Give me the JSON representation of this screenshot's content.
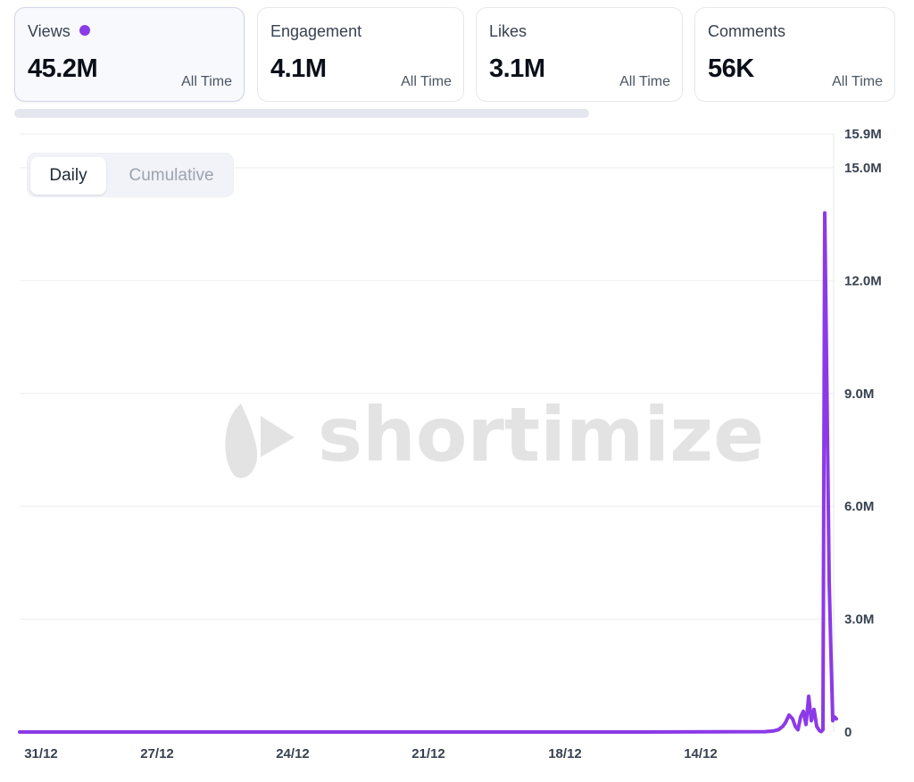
{
  "metrics": [
    {
      "label": "Views",
      "value": "45.2M",
      "period": "All Time",
      "active": true
    },
    {
      "label": "Engagement",
      "value": "4.1M",
      "period": "All Time"
    },
    {
      "label": "Likes",
      "value": "3.1M",
      "period": "All Time"
    },
    {
      "label": "Comments",
      "value": "56K",
      "period": "All Time"
    }
  ],
  "toggle": {
    "daily": "Daily",
    "cumulative": "Cumulative",
    "selected": "daily"
  },
  "watermark": "shortimize",
  "colors": {
    "accent": "#8b3ce6",
    "line": "#8c3ae7"
  },
  "chart_data": {
    "type": "line",
    "x_tick_labels": [
      "31/12",
      "27/12",
      "24/12",
      "21/12",
      "18/12",
      "14/12"
    ],
    "y_tick_labels": [
      "0",
      "3.0M",
      "6.0M",
      "9.0M",
      "12.0M",
      "15.0M",
      "15.9M"
    ],
    "ylim": [
      0,
      15900000
    ],
    "grid": true,
    "series": [
      {
        "values": [
          [
            0,
            0
          ],
          [
            700,
            0
          ],
          [
            835,
            10000
          ],
          [
            845,
            30000
          ],
          [
            850,
            60000
          ],
          [
            855,
            150000
          ],
          [
            858,
            250000
          ],
          [
            862,
            450000
          ],
          [
            866,
            350000
          ],
          [
            869,
            150000
          ],
          [
            872,
            60000
          ],
          [
            875,
            400000
          ],
          [
            878,
            550000
          ],
          [
            881,
            200000
          ],
          [
            884,
            950000
          ],
          [
            887,
            300000
          ],
          [
            890,
            600000
          ],
          [
            893,
            150000
          ],
          [
            896,
            40000
          ],
          [
            898,
            10000
          ],
          [
            900,
            60000
          ],
          [
            902,
            13800000
          ],
          [
            905,
            8000000
          ],
          [
            907,
            4000000
          ],
          [
            909,
            2050000
          ],
          [
            911,
            300000
          ],
          [
            913,
            400000
          ],
          [
            915,
            350000
          ]
        ]
      }
    ]
  }
}
